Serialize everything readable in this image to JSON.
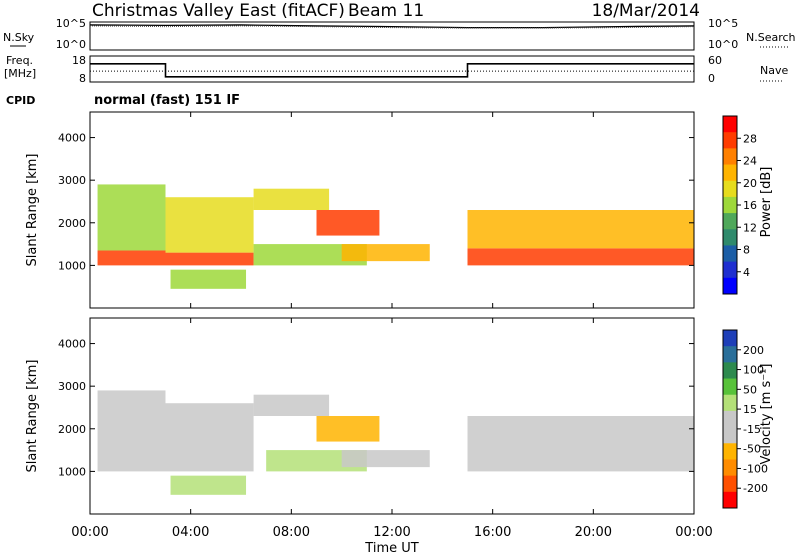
{
  "header": {
    "title": "Christmas Valley East (fitACF)",
    "beam": "Beam 11",
    "date": "18/Mar/2014"
  },
  "control_panel": {
    "nsky_label": "N.Sky",
    "nsearch_label": "N.Search",
    "freq_label_1": "Freq.",
    "freq_label_2": "[MHz]",
    "nave_label": "Nave",
    "cpid_label": "CPID",
    "cpid_value": "normal (fast) 151 IF",
    "noise_ticks_left": [
      "10^5",
      "10^0"
    ],
    "noise_ticks_right": [
      "10^5",
      "10^0"
    ],
    "freq_ticks": [
      "18",
      "8"
    ],
    "nave_ticks": [
      "60",
      "0"
    ]
  },
  "colorbars": {
    "power": {
      "label": "Power [dB]",
      "ticks": [
        "28",
        "24",
        "20",
        "16",
        "12",
        "8",
        "4"
      ],
      "colors": [
        "#ff0000",
        "#ff3c00",
        "#ff8000",
        "#ffb400",
        "#e6dc1e",
        "#9ed83a",
        "#4fa85a",
        "#2f8a6c",
        "#1c5ea6",
        "#1f2fd0",
        "#0000ff"
      ]
    },
    "velocity": {
      "label": "Velocity [m s⁻¹]",
      "ticks": [
        "200",
        "100",
        "50",
        "15",
        "-15",
        "-50",
        "-100",
        "-200"
      ],
      "colors": [
        "#1e3fb8",
        "#2a6f9a",
        "#2d8a4e",
        "#58c23a",
        "#b4e078",
        "#c8c8c8",
        "#c8c8c8",
        "#ffb400",
        "#ff8c00",
        "#ff5000",
        "#ff0000"
      ]
    }
  },
  "axes": {
    "ylabel": "Slant Range [km]",
    "xlabel": "Time UT",
    "yticks": [
      "4000",
      "3000",
      "2000",
      "1000"
    ],
    "xticks": [
      "00:00",
      "04:00",
      "08:00",
      "12:00",
      "16:00",
      "20:00",
      "00:00"
    ]
  },
  "chart_data": [
    {
      "type": "line",
      "title": "Christmas Valley East (fitACF) Beam 11 18/Mar/2014",
      "panel": "noise",
      "x_units": "hours UT",
      "series": [
        {
          "name": "N.Sky",
          "x": [
            0,
            3,
            6,
            9,
            12,
            15,
            18,
            21,
            24
          ],
          "values": [
            30000,
            25000,
            30000,
            20000,
            15000,
            10000,
            10000,
            15000,
            20000
          ]
        },
        {
          "name": "N.Search",
          "x": [
            0,
            3,
            6,
            9,
            12,
            15,
            18,
            21,
            24
          ],
          "values": [
            20000,
            15000,
            20000,
            15000,
            10000,
            8000,
            8000,
            10000,
            15000
          ]
        }
      ]
    },
    {
      "type": "line",
      "panel": "frequency",
      "x_units": "hours UT",
      "series": [
        {
          "name": "Freq.",
          "x": [
            0,
            3,
            3,
            15,
            15,
            24
          ],
          "values": [
            15,
            15,
            10,
            10,
            15,
            15
          ]
        },
        {
          "name": "Nave",
          "x": [
            0,
            24
          ],
          "values": [
            25,
            25
          ]
        }
      ]
    },
    {
      "type": "heatmap",
      "panel": "power",
      "xlabel": "Time UT",
      "ylabel": "Slant Range [km]",
      "xlim": [
        0,
        24
      ],
      "ylim": [
        0,
        4600
      ],
      "colorbar_label": "Power [dB]",
      "regions": [
        {
          "t0": 0.3,
          "t1": 3.0,
          "r0": 1000,
          "r1": 1350,
          "value": 28
        },
        {
          "t0": 0.3,
          "t1": 3.0,
          "r0": 1350,
          "r1": 2900,
          "value": 16
        },
        {
          "t0": 3.0,
          "t1": 6.5,
          "r0": 1000,
          "r1": 1300,
          "value": 26
        },
        {
          "t0": 3.0,
          "t1": 6.5,
          "r0": 1300,
          "r1": 2600,
          "value": 18
        },
        {
          "t0": 3.2,
          "t1": 6.2,
          "r0": 450,
          "r1": 900,
          "value": 14
        },
        {
          "t0": 6.5,
          "t1": 9.5,
          "r0": 2300,
          "r1": 2800,
          "value": 18
        },
        {
          "t0": 6.5,
          "t1": 11.0,
          "r0": 1000,
          "r1": 1500,
          "value": 14
        },
        {
          "t0": 9.0,
          "t1": 11.5,
          "r0": 1700,
          "r1": 2300,
          "value": 28
        },
        {
          "t0": 10.0,
          "t1": 13.5,
          "r0": 1100,
          "r1": 1500,
          "value": 20
        },
        {
          "t0": 15.0,
          "t1": 24.0,
          "r0": 1000,
          "r1": 1400,
          "value": 28
        },
        {
          "t0": 15.0,
          "t1": 24.0,
          "r0": 1400,
          "r1": 2300,
          "value": 20
        }
      ]
    },
    {
      "type": "heatmap",
      "panel": "velocity",
      "xlabel": "Time UT",
      "ylabel": "Slant Range [km]",
      "xlim": [
        0,
        24
      ],
      "ylim": [
        0,
        4600
      ],
      "colorbar_label": "Velocity [m s⁻¹]",
      "regions": [
        {
          "t0": 0.3,
          "t1": 3.0,
          "r0": 1000,
          "r1": 2900,
          "value": 0
        },
        {
          "t0": 3.0,
          "t1": 6.5,
          "r0": 1000,
          "r1": 2600,
          "value": -30
        },
        {
          "t0": 3.2,
          "t1": 6.2,
          "r0": 450,
          "r1": 900,
          "value": 40
        },
        {
          "t0": 6.5,
          "t1": 9.5,
          "r0": 2300,
          "r1": 2800,
          "value": 0
        },
        {
          "t0": 7.0,
          "t1": 11.0,
          "r0": 1000,
          "r1": 1500,
          "value": 40
        },
        {
          "t0": 9.0,
          "t1": 11.5,
          "r0": 1700,
          "r1": 2300,
          "value": -100
        },
        {
          "t0": 10.0,
          "t1": 13.5,
          "r0": 1100,
          "r1": 1500,
          "value": -50
        },
        {
          "t0": 15.0,
          "t1": 24.0,
          "r0": 1000,
          "r1": 2300,
          "value": 0
        }
      ]
    }
  ]
}
